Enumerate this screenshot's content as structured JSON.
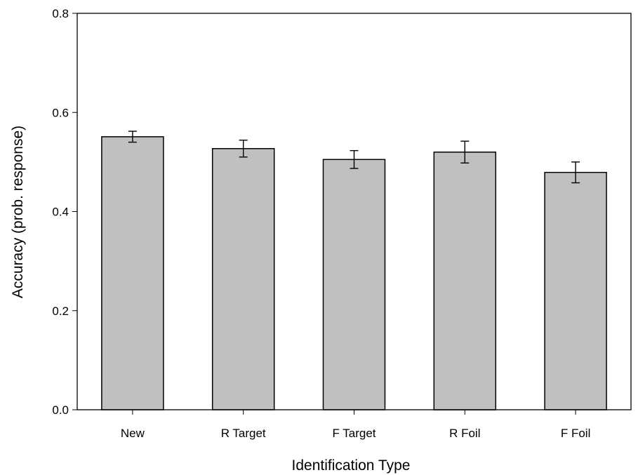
{
  "chart_data": {
    "type": "bar",
    "title": "",
    "xlabel": "Identification Type",
    "ylabel": "Accuracy (prob. response)",
    "categories": [
      "New",
      "R Target",
      "F Target",
      "R Foil",
      "F Foil"
    ],
    "values": [
      0.551,
      0.527,
      0.505,
      0.52,
      0.479
    ],
    "error": [
      0.011,
      0.017,
      0.018,
      0.022,
      0.021
    ],
    "ylim": [
      0,
      0.8
    ],
    "yticks": [
      0.0,
      0.2,
      0.4,
      0.6,
      0.8
    ],
    "ytick_labels": [
      "0.0",
      "0.2",
      "0.4",
      "0.6",
      "0.8"
    ],
    "grid": false,
    "legend": "none",
    "bar_color": "#c0c0c0",
    "edge_color": "#000000"
  }
}
